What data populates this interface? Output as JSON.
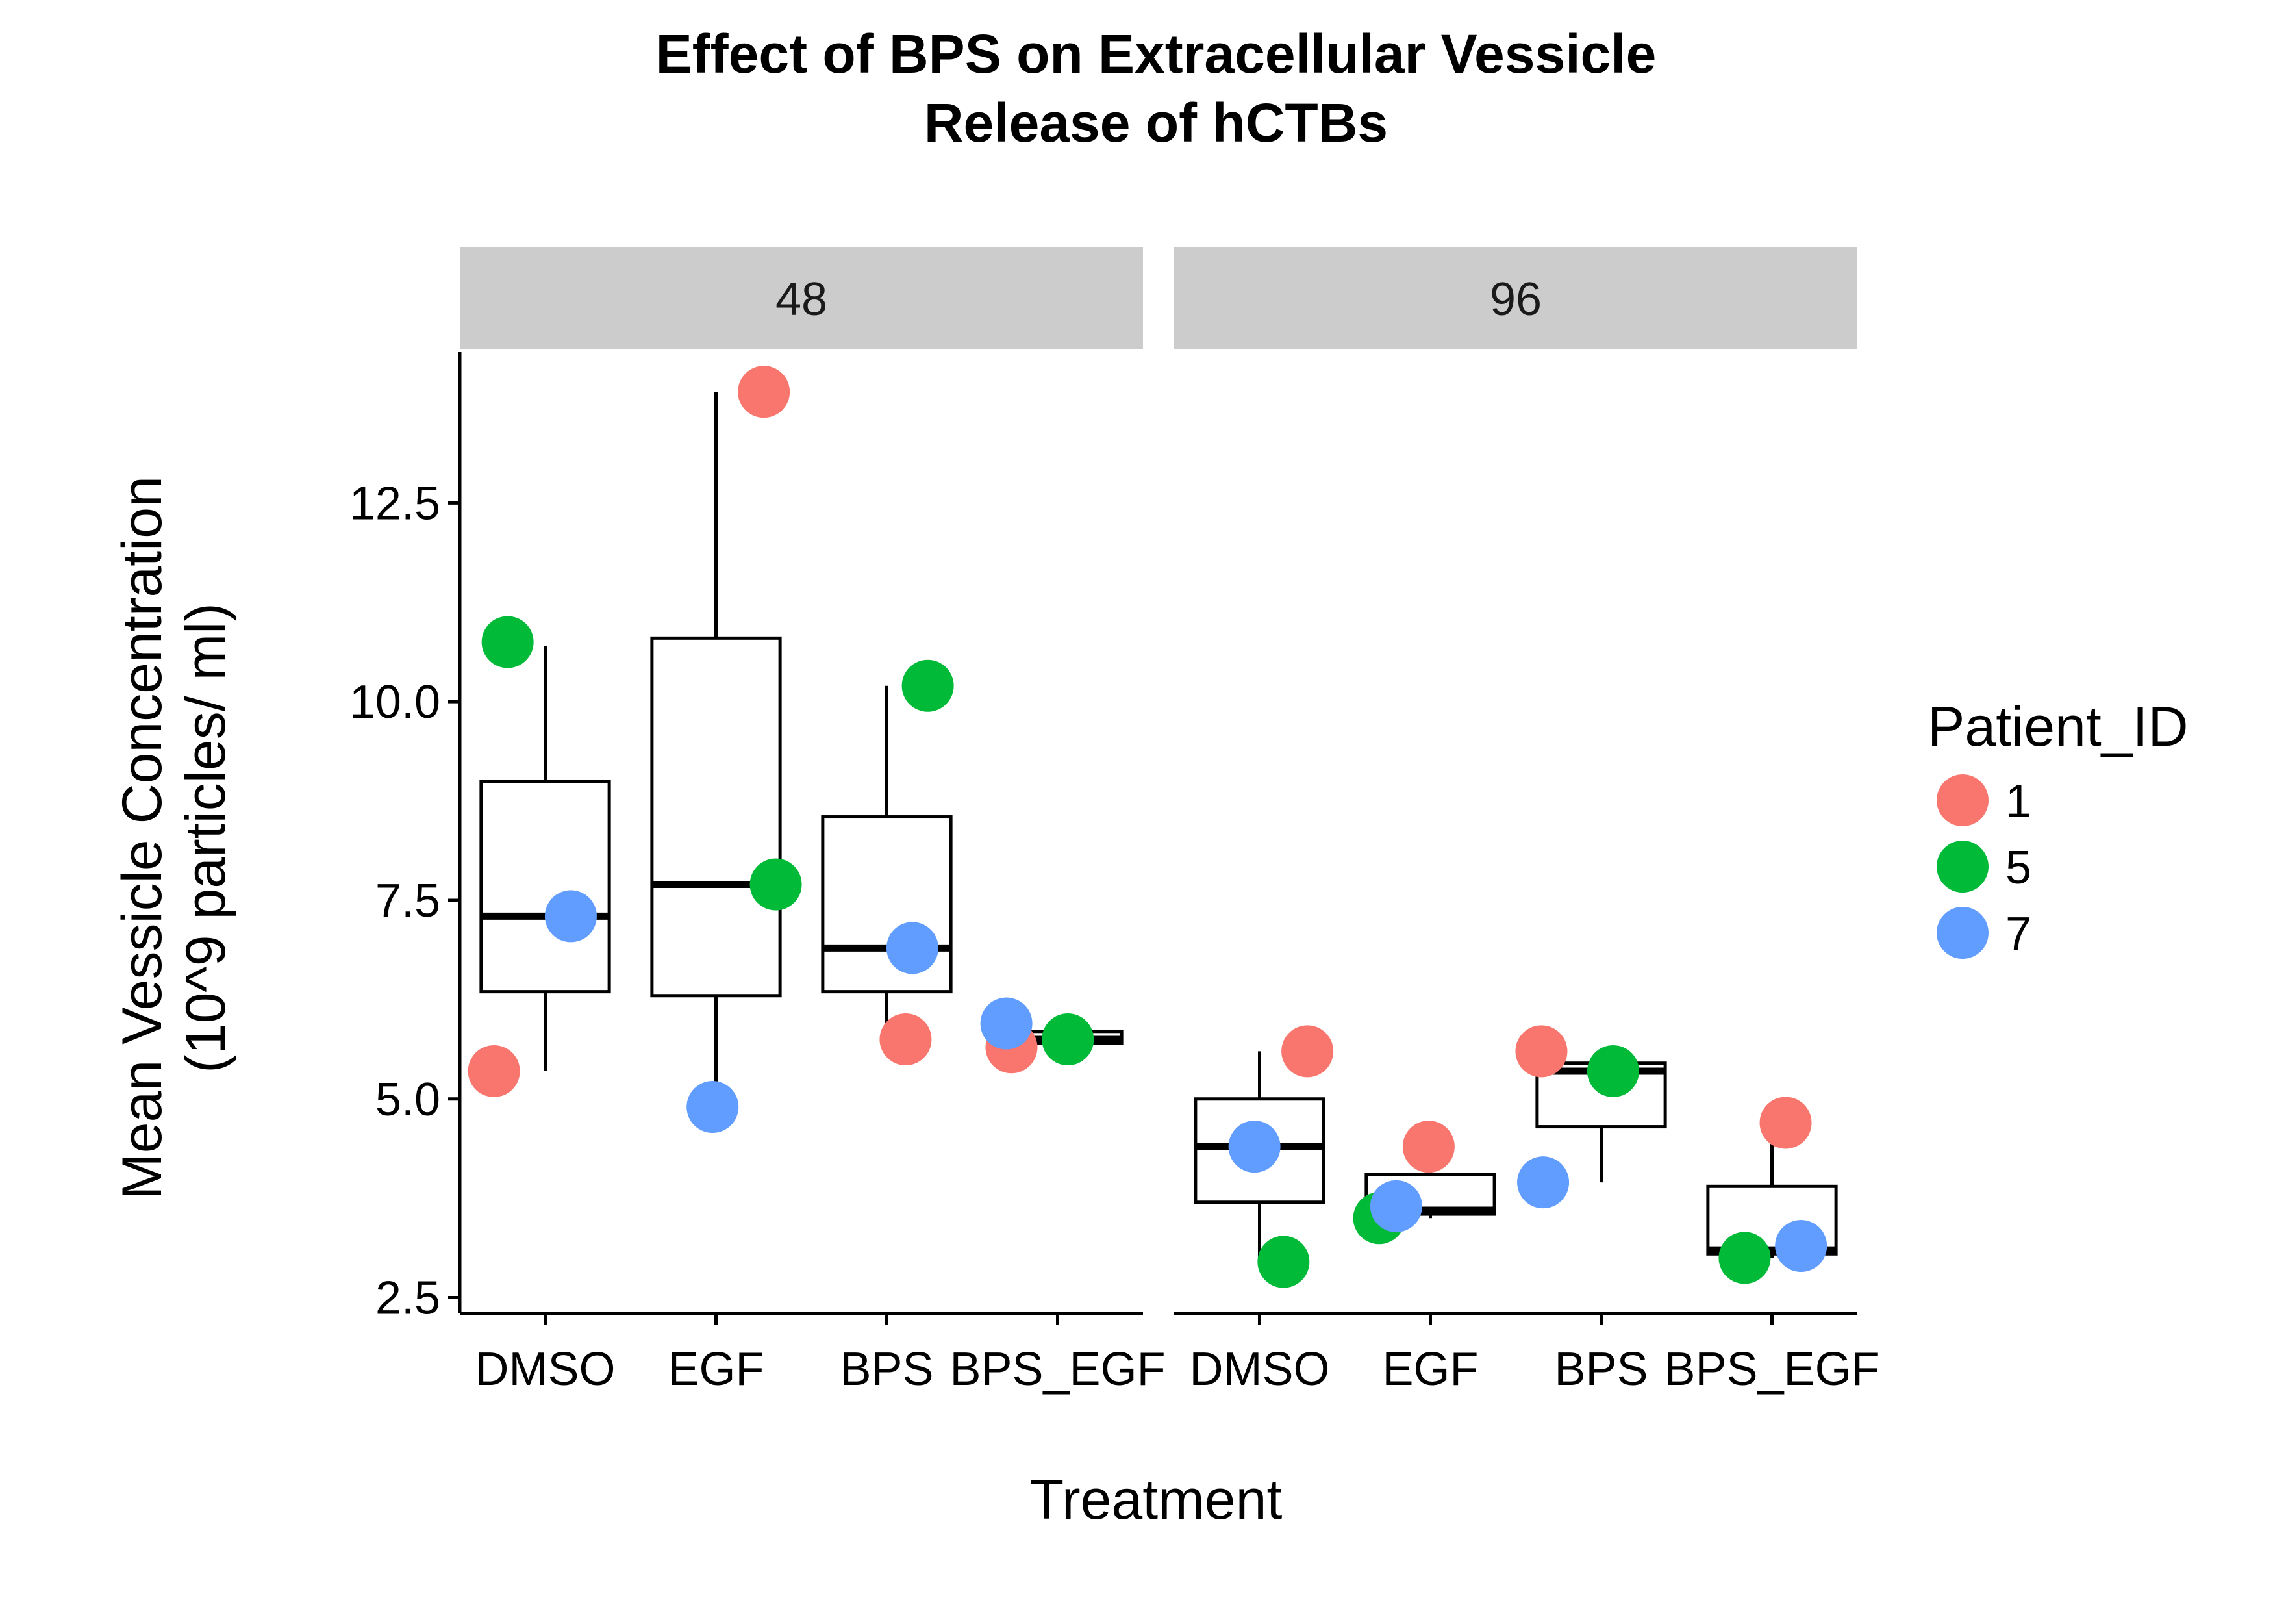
{
  "chart_data": {
    "type": "boxplot",
    "title_lines": [
      "Effect of BPS on Extracellular Vessicle",
      "Release of hCTBs"
    ],
    "xlabel": "Treatment",
    "ylabel_lines": [
      "Mean Vessicle Concentration",
      "(10^9 particles/ ml)"
    ],
    "ylim": [
      2.3,
      14.4
    ],
    "yticks": [
      2.5,
      5.0,
      7.5,
      10.0,
      12.5
    ],
    "ytick_labels": [
      "2.5",
      "5.0",
      "7.5",
      "10.0",
      "12.5"
    ],
    "categories": [
      "DMSO",
      "EGF",
      "BPS",
      "BPS_EGF"
    ],
    "legend": {
      "title": "Patient_ID",
      "entries": [
        {
          "label": "1",
          "color": "#F8766D"
        },
        {
          "label": "5",
          "color": "#00BA38"
        },
        {
          "label": "7",
          "color": "#619CFF"
        }
      ]
    },
    "panels": [
      {
        "label": "48",
        "boxes": [
          {
            "category": "DMSO",
            "q1": 6.35,
            "median": 7.3,
            "q3": 9.0,
            "whisker_low": 5.35,
            "whisker_high": 10.7
          },
          {
            "category": "EGF",
            "q1": 6.3,
            "median": 7.7,
            "q3": 10.8,
            "whisker_low": 4.9,
            "whisker_high": 13.9
          },
          {
            "category": "BPS",
            "q1": 6.35,
            "median": 6.9,
            "q3": 8.55,
            "whisker_low": 5.75,
            "whisker_high": 10.2
          },
          {
            "category": "BPS_EGF",
            "q1": 5.7,
            "median": 5.75,
            "q3": 5.85,
            "whisker_low": 5.65,
            "whisker_high": 5.95
          }
        ],
        "points": [
          {
            "category": "DMSO",
            "patient": "1",
            "value": 5.35,
            "jitter": -0.3
          },
          {
            "category": "DMSO",
            "patient": "5",
            "value": 10.75,
            "jitter": -0.22
          },
          {
            "category": "DMSO",
            "patient": "7",
            "value": 7.3,
            "jitter": 0.15
          },
          {
            "category": "EGF",
            "patient": "1",
            "value": 13.9,
            "jitter": 0.28
          },
          {
            "category": "EGF",
            "patient": "5",
            "value": 7.7,
            "jitter": 0.35
          },
          {
            "category": "EGF",
            "patient": "7",
            "value": 4.9,
            "jitter": -0.02
          },
          {
            "category": "BPS",
            "patient": "1",
            "value": 5.75,
            "jitter": 0.11
          },
          {
            "category": "BPS",
            "patient": "5",
            "value": 10.2,
            "jitter": 0.24
          },
          {
            "category": "BPS",
            "patient": "7",
            "value": 6.9,
            "jitter": 0.15
          },
          {
            "category": "BPS_EGF",
            "patient": "1",
            "value": 5.65,
            "jitter": -0.27
          },
          {
            "category": "BPS_EGF",
            "patient": "5",
            "value": 5.75,
            "jitter": 0.06
          },
          {
            "category": "BPS_EGF",
            "patient": "7",
            "value": 5.95,
            "jitter": -0.3
          }
        ]
      },
      {
        "label": "96",
        "boxes": [
          {
            "category": "DMSO",
            "q1": 3.7,
            "median": 4.4,
            "q3": 5.0,
            "whisker_low": 2.95,
            "whisker_high": 5.6
          },
          {
            "category": "EGF",
            "q1": 3.55,
            "median": 3.6,
            "q3": 4.05,
            "whisker_low": 3.5,
            "whisker_high": 4.4
          },
          {
            "category": "BPS",
            "q1": 4.65,
            "median": 5.35,
            "q3": 5.45,
            "whisker_low": 3.95,
            "whisker_high": 5.55
          },
          {
            "category": "BPS_EGF",
            "q1": 3.05,
            "median": 3.1,
            "q3": 3.9,
            "whisker_low": 3.0,
            "whisker_high": 4.7
          }
        ],
        "points": [
          {
            "category": "DMSO",
            "patient": "1",
            "value": 5.6,
            "jitter": 0.28
          },
          {
            "category": "DMSO",
            "patient": "5",
            "value": 2.95,
            "jitter": 0.14
          },
          {
            "category": "DMSO",
            "patient": "7",
            "value": 4.4,
            "jitter": -0.03
          },
          {
            "category": "EGF",
            "patient": "1",
            "value": 4.4,
            "jitter": -0.01
          },
          {
            "category": "EGF",
            "patient": "5",
            "value": 3.5,
            "jitter": -0.3
          },
          {
            "category": "EGF",
            "patient": "7",
            "value": 3.65,
            "jitter": -0.2
          },
          {
            "category": "BPS",
            "patient": "1",
            "value": 5.6,
            "jitter": -0.35
          },
          {
            "category": "BPS",
            "patient": "5",
            "value": 5.35,
            "jitter": 0.07
          },
          {
            "category": "BPS",
            "patient": "7",
            "value": 3.95,
            "jitter": -0.34
          },
          {
            "category": "BPS_EGF",
            "patient": "1",
            "value": 4.7,
            "jitter": 0.08
          },
          {
            "category": "BPS_EGF",
            "patient": "5",
            "value": 3.0,
            "jitter": -0.16
          },
          {
            "category": "BPS_EGF",
            "patient": "7",
            "value": 3.15,
            "jitter": 0.17
          }
        ]
      }
    ]
  }
}
